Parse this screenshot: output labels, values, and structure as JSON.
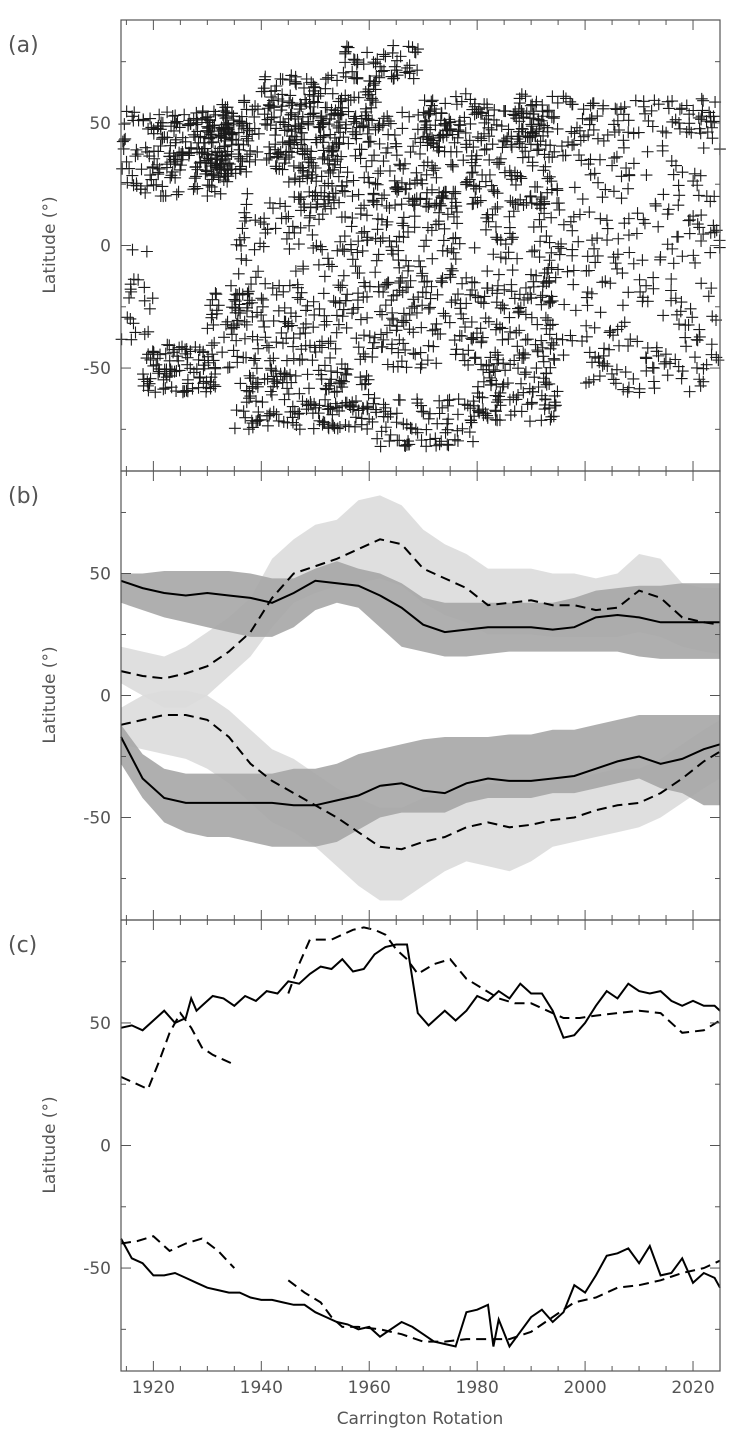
{
  "chart_data": [
    {
      "id": "a",
      "panel_label": "(a)",
      "type": "scatter",
      "ylabel": "Latitude (°)",
      "xlim": [
        1914,
        2025
      ],
      "ylim": [
        -92,
        92
      ],
      "yticks": [
        50,
        0,
        -50
      ],
      "marker": "plus",
      "clusters": [
        {
          "x": [
            1914,
            1938
          ],
          "y": [
            20,
            55
          ],
          "n": 180
        },
        {
          "x": [
            1918,
            1932
          ],
          "y": [
            -60,
            -40
          ],
          "n": 90
        },
        {
          "x": [
            1920,
            1935
          ],
          "y": [
            28,
            52
          ],
          "n": 80
        },
        {
          "x": [
            1932,
            1955
          ],
          "y": [
            30,
            60
          ],
          "n": 160
        },
        {
          "x": [
            1940,
            1962
          ],
          "y": [
            55,
            70
          ],
          "n": 80
        },
        {
          "x": [
            1955,
            1970
          ],
          "y": [
            68,
            82
          ],
          "n": 50
        },
        {
          "x": [
            1935,
            1960
          ],
          "y": [
            -75,
            -50
          ],
          "n": 160
        },
        {
          "x": [
            1960,
            1980
          ],
          "y": [
            -82,
            -62
          ],
          "n": 80
        },
        {
          "x": [
            1930,
            1995
          ],
          "y": [
            -50,
            -15
          ],
          "n": 380
        },
        {
          "x": [
            1935,
            1995
          ],
          "y": [
            -15,
            20
          ],
          "n": 240
        },
        {
          "x": [
            1945,
            1995
          ],
          "y": [
            15,
            55
          ],
          "n": 380
        },
        {
          "x": [
            1970,
            2000
          ],
          "y": [
            40,
            62
          ],
          "n": 120
        },
        {
          "x": [
            1980,
            1995
          ],
          "y": [
            -72,
            -50
          ],
          "n": 80
        },
        {
          "x": [
            1995,
            2025
          ],
          "y": [
            -45,
            45
          ],
          "n": 200
        },
        {
          "x": [
            2000,
            2025
          ],
          "y": [
            45,
            60
          ],
          "n": 70
        },
        {
          "x": [
            2000,
            2025
          ],
          "y": [
            -60,
            -45
          ],
          "n": 50
        },
        {
          "x": [
            1914,
            1920
          ],
          "y": [
            -40,
            0
          ],
          "n": 20
        }
      ]
    },
    {
      "id": "b",
      "panel_label": "(b)",
      "type": "area",
      "ylabel": "Latitude (°)",
      "xlim": [
        1914,
        2025
      ],
      "ylim": [
        -92,
        92
      ],
      "yticks": [
        50,
        0,
        -50
      ],
      "x": [
        1914,
        1918,
        1922,
        1926,
        1930,
        1934,
        1938,
        1942,
        1946,
        1950,
        1954,
        1958,
        1962,
        1966,
        1970,
        1974,
        1978,
        1982,
        1986,
        1990,
        1994,
        1998,
        2002,
        2006,
        2010,
        2014,
        2018,
        2022,
        2025
      ],
      "series": [
        {
          "style": "solid",
          "band": "dark",
          "values": [
            47,
            44,
            42,
            41,
            42,
            41,
            40,
            38,
            42,
            47,
            46,
            45,
            41,
            36,
            29,
            26,
            27,
            28,
            28,
            28,
            27,
            28,
            32,
            33,
            32,
            30,
            30,
            30,
            30
          ],
          "lower": [
            38,
            35,
            32,
            30,
            28,
            26,
            24,
            24,
            28,
            35,
            38,
            36,
            28,
            20,
            18,
            16,
            16,
            17,
            18,
            18,
            18,
            18,
            18,
            18,
            16,
            15,
            15,
            15,
            15
          ],
          "upper": [
            50,
            50,
            51,
            51,
            51,
            51,
            50,
            48,
            48,
            52,
            55,
            52,
            50,
            46,
            40,
            38,
            38,
            38,
            38,
            38,
            38,
            40,
            43,
            44,
            45,
            45,
            46,
            46,
            46
          ]
        },
        {
          "style": "dashed",
          "band": "light",
          "values": [
            10,
            8,
            7,
            9,
            12,
            18,
            26,
            40,
            50,
            53,
            56,
            60,
            64,
            62,
            52,
            48,
            44,
            37,
            38,
            39,
            37,
            37,
            35,
            36,
            43,
            40,
            32,
            30,
            29
          ],
          "lower": [
            5,
            0,
            -5,
            -5,
            0,
            8,
            16,
            28,
            38,
            42,
            45,
            46,
            48,
            45,
            38,
            33,
            30,
            25,
            25,
            25,
            24,
            24,
            24,
            24,
            26,
            24,
            20,
            18,
            17
          ],
          "upper": [
            20,
            18,
            16,
            20,
            26,
            32,
            40,
            56,
            64,
            70,
            72,
            80,
            82,
            78,
            68,
            62,
            58,
            52,
            52,
            52,
            50,
            50,
            48,
            50,
            58,
            56,
            46,
            44,
            44
          ]
        },
        {
          "style": "solid",
          "band": "dark",
          "values": [
            -17,
            -34,
            -42,
            -44,
            -44,
            -44,
            -44,
            -44,
            -45,
            -45,
            -43,
            -41,
            -37,
            -36,
            -39,
            -40,
            -36,
            -34,
            -35,
            -35,
            -34,
            -33,
            -30,
            -27,
            -25,
            -28,
            -26,
            -22,
            -20
          ],
          "lower": [
            -28,
            -42,
            -52,
            -56,
            -58,
            -58,
            -60,
            -62,
            -62,
            -62,
            -60,
            -55,
            -50,
            -48,
            -48,
            -48,
            -44,
            -42,
            -42,
            -42,
            -40,
            -40,
            -38,
            -36,
            -34,
            -38,
            -40,
            -45,
            -45
          ],
          "upper": [
            -12,
            -24,
            -30,
            -32,
            -32,
            -32,
            -32,
            -32,
            -30,
            -30,
            -28,
            -24,
            -22,
            -20,
            -18,
            -17,
            -17,
            -17,
            -16,
            -16,
            -14,
            -14,
            -12,
            -10,
            -8,
            -8,
            -8,
            -8,
            -8
          ]
        },
        {
          "style": "dashed",
          "band": "light",
          "values": [
            -12,
            -10,
            -8,
            -8,
            -10,
            -17,
            -28,
            -35,
            -40,
            -45,
            -50,
            -56,
            -62,
            -63,
            -60,
            -58,
            -54,
            -52,
            -54,
            -53,
            -51,
            -50,
            -47,
            -45,
            -44,
            -40,
            -34,
            -27,
            -23
          ],
          "lower": [
            -20,
            -22,
            -24,
            -26,
            -30,
            -36,
            -44,
            -52,
            -56,
            -62,
            -70,
            -78,
            -84,
            -84,
            -78,
            -72,
            -68,
            -70,
            -72,
            -68,
            -62,
            -60,
            -58,
            -56,
            -54,
            -50,
            -44,
            -38,
            -34
          ],
          "upper": [
            -5,
            0,
            2,
            2,
            0,
            -6,
            -14,
            -22,
            -26,
            -32,
            -38,
            -42,
            -46,
            -46,
            -42,
            -40,
            -38,
            -36,
            -36,
            -36,
            -34,
            -34,
            -32,
            -30,
            -30,
            -26,
            -20,
            -14,
            -10
          ]
        }
      ]
    },
    {
      "id": "c",
      "panel_label": "(c)",
      "type": "line",
      "ylabel": "Latitude (°)",
      "xlabel": "Carrington Rotation",
      "xlim": [
        1914,
        2025
      ],
      "ylim": [
        -92,
        92
      ],
      "yticks": [
        50,
        0,
        -50
      ],
      "xticks": [
        1920,
        1940,
        1960,
        1980,
        2000,
        2020
      ],
      "series": [
        {
          "style": "solid",
          "x": [
            1914,
            1916,
            1918,
            1920,
            1922,
            1924,
            1926,
            1927,
            1928,
            1929,
            1931,
            1933,
            1935,
            1937,
            1939,
            1941,
            1943,
            1945,
            1947,
            1949,
            1951,
            1953,
            1955,
            1957,
            1959,
            1961,
            1963,
            1965,
            1967,
            1969,
            1971,
            1972,
            1974,
            1976,
            1978,
            1980,
            1982,
            1984,
            1986,
            1988,
            1990,
            1992,
            1994,
            1996,
            1998,
            2000,
            2002,
            2004,
            2006,
            2008,
            2010,
            2012,
            2014,
            2016,
            2018,
            2020,
            2022,
            2024,
            2025
          ],
          "y": [
            48,
            49,
            47,
            51,
            55,
            50,
            52,
            60,
            55,
            57,
            61,
            60,
            57,
            61,
            59,
            63,
            62,
            67,
            66,
            70,
            73,
            72,
            76,
            71,
            72,
            78,
            81,
            82,
            82,
            54,
            49,
            51,
            55,
            51,
            55,
            61,
            59,
            63,
            60,
            66,
            62,
            62,
            55,
            44,
            45,
            50,
            57,
            63,
            60,
            66,
            63,
            62,
            63,
            59,
            57,
            59,
            57,
            57,
            55
          ]
        },
        {
          "style": "dashed",
          "x": [
            1914,
            1917,
            1919,
            1921,
            1923,
            1925,
            1927,
            1929,
            1931,
            1933,
            1935
          ],
          "y": [
            28,
            25,
            23,
            34,
            46,
            54,
            48,
            40,
            37,
            35,
            33
          ]
        },
        {
          "style": "dashed",
          "x": [
            1945,
            1947,
            1949,
            1951,
            1953,
            1955,
            1957,
            1959,
            1961,
            1963,
            1965,
            1967,
            1969,
            1972,
            1975,
            1978,
            1981,
            1984,
            1987,
            1990,
            1993,
            1996,
            1999,
            2002,
            2006,
            2010,
            2014,
            2018,
            2022,
            2025
          ],
          "y": [
            62,
            74,
            84,
            84,
            84,
            86,
            88,
            89,
            88,
            86,
            80,
            76,
            70,
            74,
            76,
            68,
            64,
            60,
            58,
            58,
            55,
            52,
            52,
            53,
            54,
            55,
            54,
            46,
            47,
            51
          ]
        },
        {
          "style": "solid",
          "x": [
            1914,
            1916,
            1918,
            1920,
            1922,
            1924,
            1926,
            1928,
            1930,
            1932,
            1934,
            1936,
            1938,
            1940,
            1942,
            1944,
            1946,
            1948,
            1950,
            1952,
            1954,
            1956,
            1958,
            1960,
            1962,
            1964,
            1966,
            1968,
            1970,
            1972,
            1974,
            1976,
            1978,
            1980,
            1982,
            1983,
            1984,
            1986,
            1988,
            1990,
            1992,
            1994,
            1996,
            1998,
            2000,
            2002,
            2004,
            2006,
            2008,
            2010,
            2012,
            2014,
            2016,
            2018,
            2020,
            2022,
            2024,
            2025
          ],
          "y": [
            -38,
            -46,
            -48,
            -53,
            -53,
            -52,
            -54,
            -56,
            -58,
            -59,
            -60,
            -60,
            -62,
            -63,
            -63,
            -64,
            -65,
            -65,
            -68,
            -70,
            -72,
            -73,
            -75,
            -74,
            -78,
            -75,
            -72,
            -74,
            -77,
            -80,
            -81,
            -82,
            -68,
            -67,
            -65,
            -82,
            -71,
            -82,
            -76,
            -70,
            -67,
            -72,
            -68,
            -57,
            -60,
            -53,
            -45,
            -44,
            -42,
            -48,
            -41,
            -53,
            -52,
            -46,
            -56,
            -52,
            -54,
            -58
          ]
        },
        {
          "style": "dashed",
          "x": [
            1914,
            1917,
            1920,
            1923,
            1926,
            1929,
            1932,
            1935
          ],
          "y": [
            -40,
            -39,
            -37,
            -43,
            -40,
            -38,
            -43,
            -50
          ]
        },
        {
          "style": "dashed",
          "x": [
            1945,
            1948,
            1951,
            1953,
            1955,
            1958,
            1962,
            1966,
            1970,
            1974,
            1978,
            1982,
            1986,
            1990,
            1994,
            1998,
            2002,
            2006,
            2010,
            2014,
            2018,
            2022,
            2025
          ],
          "y": [
            -55,
            -60,
            -64,
            -70,
            -74,
            -74,
            -75,
            -77,
            -80,
            -80,
            -79,
            -79,
            -79,
            -76,
            -70,
            -64,
            -62,
            -58,
            -57,
            -55,
            -52,
            -50,
            -47
          ]
        }
      ]
    }
  ],
  "colors": {
    "axis": "#555555",
    "band_dark": "#a6a6a6",
    "band_light": "#dcdcdc",
    "line": "#000000",
    "marker": "#1a1a1a"
  }
}
